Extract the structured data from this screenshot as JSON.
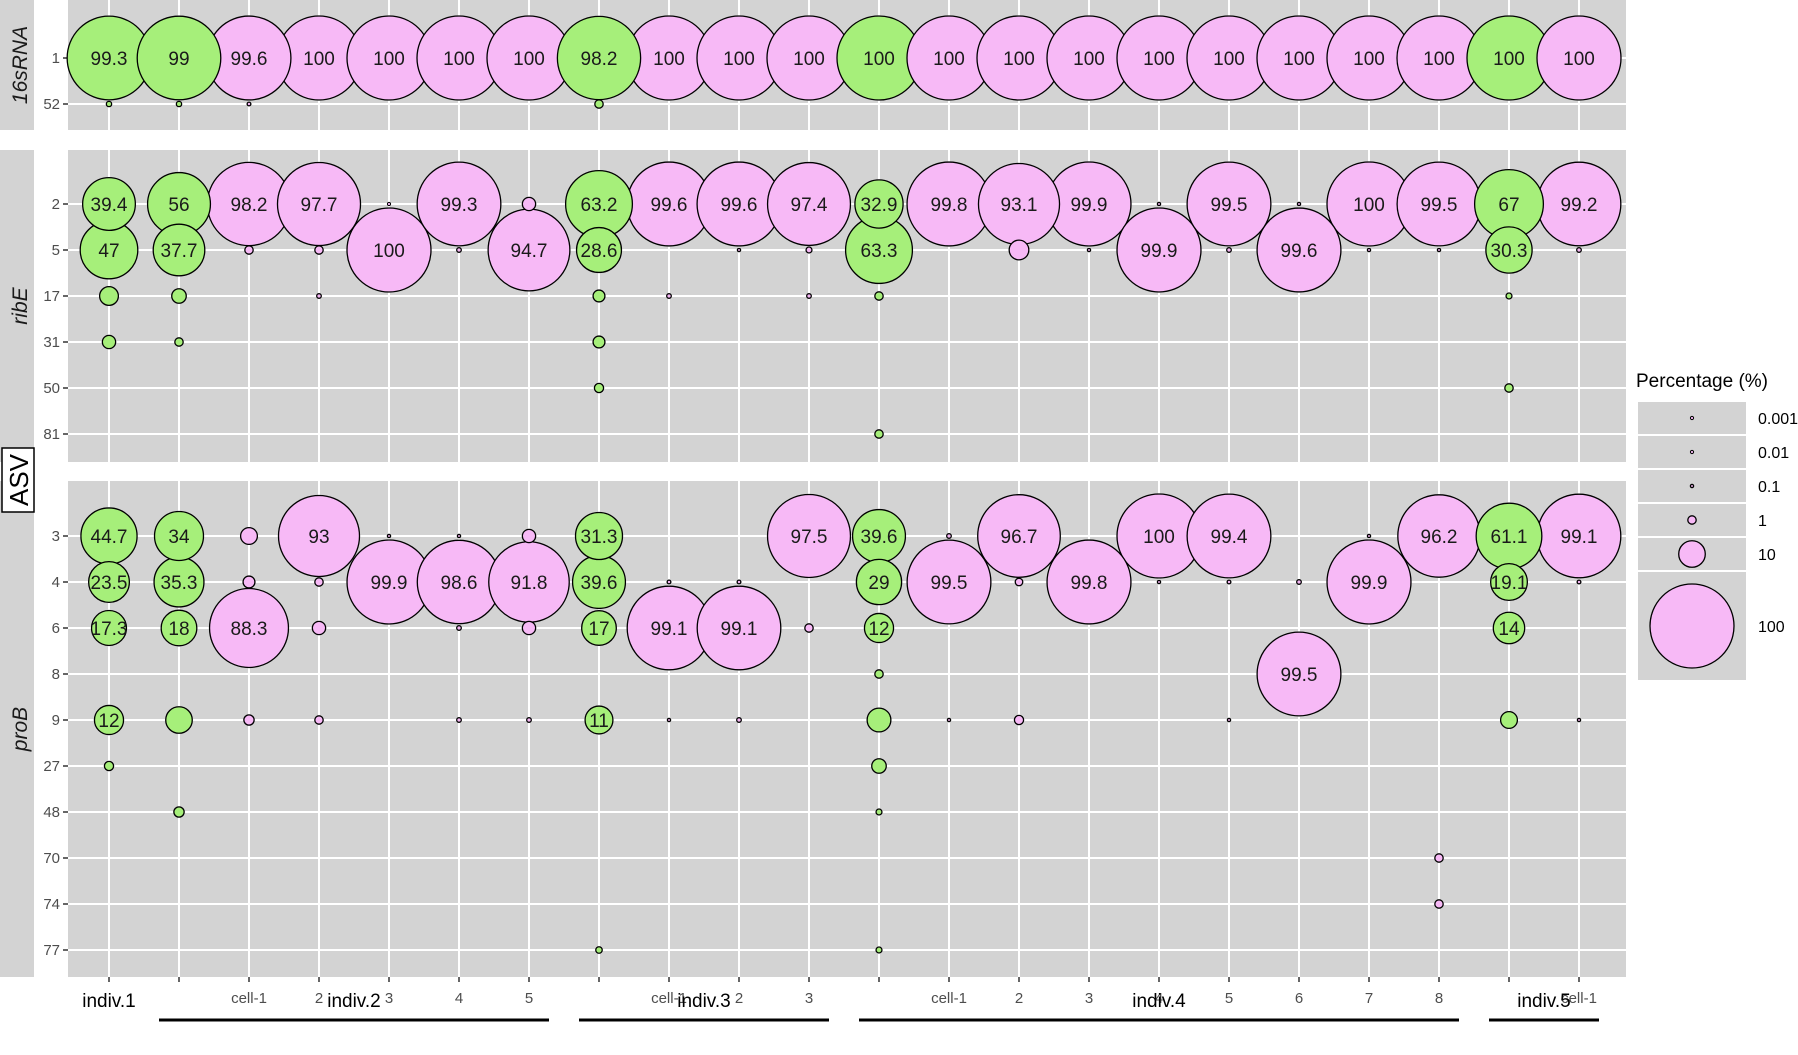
{
  "chart_data": {
    "type": "scatter",
    "y_title": "ASV",
    "legend": {
      "title": "Percentage (%)",
      "placement": "right",
      "entries": [
        {
          "label": "0.001",
          "value": 0.001
        },
        {
          "label": "0.01",
          "value": 0.01
        },
        {
          "label": "0.1",
          "value": 0.1
        },
        {
          "label": "1",
          "value": 1
        },
        {
          "label": "10",
          "value": 10
        },
        {
          "label": "100",
          "value": 100
        }
      ]
    },
    "colors": {
      "panel_bg": "#d3d3d3",
      "grid": "#ffffff",
      "green": "#a6ef7a",
      "pink": "#f7b9f6",
      "outline": "#000000"
    },
    "columns": [
      {
        "tick": "",
        "fill": "green"
      },
      {
        "tick": "",
        "fill": "green"
      },
      {
        "tick": "cell-1",
        "fill": "pink"
      },
      {
        "tick": "2",
        "fill": "pink"
      },
      {
        "tick": "3",
        "fill": "pink"
      },
      {
        "tick": "4",
        "fill": "pink"
      },
      {
        "tick": "5",
        "fill": "pink"
      },
      {
        "tick": "",
        "fill": "green"
      },
      {
        "tick": "cell-1",
        "fill": "pink"
      },
      {
        "tick": "2",
        "fill": "pink"
      },
      {
        "tick": "3",
        "fill": "pink"
      },
      {
        "tick": "",
        "fill": "green"
      },
      {
        "tick": "cell-1",
        "fill": "pink"
      },
      {
        "tick": "2",
        "fill": "pink"
      },
      {
        "tick": "3",
        "fill": "pink"
      },
      {
        "tick": "4",
        "fill": "pink"
      },
      {
        "tick": "5",
        "fill": "pink"
      },
      {
        "tick": "6",
        "fill": "pink"
      },
      {
        "tick": "7",
        "fill": "pink"
      },
      {
        "tick": "8",
        "fill": "pink"
      },
      {
        "tick": "",
        "fill": "green"
      },
      {
        "tick": "cell-1",
        "fill": "pink"
      }
    ],
    "groups": [
      {
        "label": "indiv.1",
        "from": 0,
        "to": 0,
        "underline": false
      },
      {
        "label": "indiv.2",
        "from": 1,
        "to": 6,
        "underline": true
      },
      {
        "label": "indiv.3",
        "from": 7,
        "to": 10,
        "underline": true
      },
      {
        "label": "indiv.4",
        "from": 11,
        "to": 19,
        "underline": true
      },
      {
        "label": "indiv.5",
        "from": 20,
        "to": 21,
        "underline": true
      }
    ],
    "panels": [
      {
        "name": "16sRNA",
        "rows": [
          "1",
          "52"
        ],
        "points": [
          [
            0,
            "1",
            99.3,
            "99.3"
          ],
          [
            0,
            "52",
            0.4,
            ""
          ],
          [
            1,
            "1",
            99,
            "99"
          ],
          [
            1,
            "52",
            0.4,
            ""
          ],
          [
            2,
            "1",
            99.6,
            "99.6"
          ],
          [
            2,
            "52",
            0.2,
            ""
          ],
          [
            3,
            "1",
            100,
            "100"
          ],
          [
            4,
            "1",
            100,
            "100"
          ],
          [
            5,
            "1",
            100,
            "100"
          ],
          [
            6,
            "1",
            100,
            "100"
          ],
          [
            7,
            "1",
            98.2,
            "98.2"
          ],
          [
            7,
            "52",
            1.0,
            ""
          ],
          [
            8,
            "1",
            100,
            "100"
          ],
          [
            9,
            "1",
            100,
            "100"
          ],
          [
            10,
            "1",
            100,
            "100"
          ],
          [
            11,
            "1",
            100,
            "100"
          ],
          [
            12,
            "1",
            100,
            "100"
          ],
          [
            13,
            "1",
            100,
            "100"
          ],
          [
            14,
            "1",
            100,
            "100"
          ],
          [
            15,
            "1",
            100,
            "100"
          ],
          [
            16,
            "1",
            100,
            "100"
          ],
          [
            17,
            "1",
            100,
            "100"
          ],
          [
            18,
            "1",
            100,
            "100"
          ],
          [
            19,
            "1",
            100,
            "100"
          ],
          [
            20,
            "1",
            100,
            "100"
          ],
          [
            21,
            "1",
            100,
            "100"
          ]
        ]
      },
      {
        "name": "ribE",
        "rows": [
          "2",
          "5",
          "17",
          "31",
          "50",
          "81"
        ],
        "points": [
          [
            0,
            "2",
            39.4,
            "39.4"
          ],
          [
            0,
            "5",
            47,
            "47"
          ],
          [
            0,
            "17",
            5,
            ""
          ],
          [
            0,
            "31",
            2.5,
            ""
          ],
          [
            1,
            "2",
            56,
            "56"
          ],
          [
            1,
            "5",
            37.7,
            "37.7"
          ],
          [
            1,
            "17",
            3,
            ""
          ],
          [
            1,
            "31",
            1,
            ""
          ],
          [
            2,
            "2",
            98.2,
            "98.2"
          ],
          [
            2,
            "5",
            1,
            ""
          ],
          [
            3,
            "2",
            97.7,
            "97.7"
          ],
          [
            3,
            "5",
            1,
            ""
          ],
          [
            3,
            "17",
            0.3,
            ""
          ],
          [
            4,
            "2",
            0.01,
            ""
          ],
          [
            4,
            "5",
            100,
            "100"
          ],
          [
            5,
            "2",
            99.3,
            "99.3"
          ],
          [
            5,
            "5",
            0.3,
            ""
          ],
          [
            6,
            "2",
            2.5,
            ""
          ],
          [
            6,
            "5",
            94.7,
            "94.7"
          ],
          [
            7,
            "2",
            63.2,
            "63.2"
          ],
          [
            7,
            "5",
            28.6,
            "28.6"
          ],
          [
            7,
            "17",
            2,
            ""
          ],
          [
            7,
            "31",
            2,
            ""
          ],
          [
            7,
            "50",
            1.2,
            ""
          ],
          [
            8,
            "2",
            99.6,
            "99.6"
          ],
          [
            8,
            "17",
            0.3,
            ""
          ],
          [
            9,
            "2",
            99.6,
            "99.6"
          ],
          [
            9,
            "5",
            0.05,
            ""
          ],
          [
            10,
            "2",
            97.4,
            "97.4"
          ],
          [
            10,
            "5",
            0.5,
            ""
          ],
          [
            10,
            "17",
            0.3,
            ""
          ],
          [
            11,
            "2",
            32.9,
            "32.9"
          ],
          [
            11,
            "5",
            63.3,
            "63.3"
          ],
          [
            11,
            "17",
            1,
            ""
          ],
          [
            11,
            "81",
            1,
            ""
          ],
          [
            12,
            "2",
            99.8,
            "99.8"
          ],
          [
            13,
            "2",
            93.1,
            "93.1"
          ],
          [
            13,
            "5",
            5.5,
            ""
          ],
          [
            14,
            "2",
            99.9,
            "99.9"
          ],
          [
            14,
            "5",
            0.05,
            ""
          ],
          [
            15,
            "2",
            0.05,
            ""
          ],
          [
            15,
            "5",
            99.9,
            "99.9"
          ],
          [
            16,
            "2",
            99.5,
            "99.5"
          ],
          [
            16,
            "5",
            0.3,
            ""
          ],
          [
            17,
            "2",
            0.1,
            ""
          ],
          [
            17,
            "5",
            99.6,
            "99.6"
          ],
          [
            18,
            "2",
            100,
            "100"
          ],
          [
            18,
            "5",
            0.05,
            ""
          ],
          [
            19,
            "2",
            99.5,
            "99.5"
          ],
          [
            19,
            "5",
            0.05,
            ""
          ],
          [
            20,
            "2",
            67,
            "67"
          ],
          [
            20,
            "5",
            30.3,
            "30.3"
          ],
          [
            20,
            "17",
            0.5,
            ""
          ],
          [
            20,
            "50",
            1,
            ""
          ],
          [
            21,
            "2",
            99.2,
            "99.2"
          ],
          [
            21,
            "5",
            0.3,
            ""
          ]
        ]
      },
      {
        "name": "proB",
        "rows": [
          "3",
          "4",
          "6",
          "8",
          "9",
          "27",
          "48",
          "70",
          "74",
          "77"
        ],
        "points": [
          [
            0,
            "3",
            44.7,
            "44.7"
          ],
          [
            0,
            "4",
            23.5,
            "23.5"
          ],
          [
            0,
            "6",
            17.3,
            "17.3"
          ],
          [
            0,
            "9",
            12,
            "12"
          ],
          [
            0,
            "27",
            1.2,
            ""
          ],
          [
            1,
            "3",
            34,
            "34"
          ],
          [
            1,
            "4",
            35.3,
            "35.3"
          ],
          [
            1,
            "6",
            18,
            "18"
          ],
          [
            1,
            "9",
            10,
            ""
          ],
          [
            1,
            "48",
            1.5,
            ""
          ],
          [
            2,
            "3",
            4,
            ""
          ],
          [
            2,
            "4",
            2,
            ""
          ],
          [
            2,
            "6",
            88.3,
            "88.3"
          ],
          [
            2,
            "9",
            1.5,
            ""
          ],
          [
            3,
            "3",
            93,
            "93"
          ],
          [
            3,
            "4",
            1,
            ""
          ],
          [
            3,
            "6",
            2.5,
            ""
          ],
          [
            3,
            "9",
            1,
            ""
          ],
          [
            4,
            "3",
            0.05,
            ""
          ],
          [
            4,
            "4",
            99.9,
            "99.9"
          ],
          [
            5,
            "3",
            0.1,
            ""
          ],
          [
            5,
            "4",
            98.6,
            "98.6"
          ],
          [
            5,
            "6",
            0.3,
            ""
          ],
          [
            5,
            "9",
            0.3,
            ""
          ],
          [
            6,
            "3",
            2.5,
            ""
          ],
          [
            6,
            "4",
            91.8,
            "91.8"
          ],
          [
            6,
            "6",
            2.5,
            ""
          ],
          [
            6,
            "9",
            0.3,
            ""
          ],
          [
            7,
            "3",
            31.3,
            "31.3"
          ],
          [
            7,
            "4",
            39.6,
            "39.6"
          ],
          [
            7,
            "6",
            17,
            "17"
          ],
          [
            7,
            "9",
            11,
            "11"
          ],
          [
            7,
            "77",
            0.6,
            ""
          ],
          [
            8,
            "4",
            0.2,
            ""
          ],
          [
            8,
            "6",
            99.1,
            "99.1"
          ],
          [
            8,
            "9",
            0.1,
            ""
          ],
          [
            9,
            "4",
            0.2,
            ""
          ],
          [
            9,
            "6",
            99.1,
            "99.1"
          ],
          [
            9,
            "9",
            0.3,
            ""
          ],
          [
            10,
            "3",
            97.5,
            "97.5"
          ],
          [
            10,
            "6",
            1,
            ""
          ],
          [
            11,
            "3",
            39.6,
            "39.6"
          ],
          [
            11,
            "4",
            29,
            "29"
          ],
          [
            11,
            "6",
            12,
            "12"
          ],
          [
            11,
            "8",
            1,
            ""
          ],
          [
            11,
            "9",
            8,
            ""
          ],
          [
            11,
            "27",
            3,
            ""
          ],
          [
            11,
            "48",
            0.5,
            ""
          ],
          [
            11,
            "77",
            0.5,
            ""
          ],
          [
            12,
            "3",
            0.3,
            ""
          ],
          [
            12,
            "4",
            99.5,
            "99.5"
          ],
          [
            12,
            "9",
            0.1,
            ""
          ],
          [
            13,
            "3",
            96.7,
            "96.7"
          ],
          [
            13,
            "4",
            0.8,
            ""
          ],
          [
            13,
            "9",
            1.2,
            ""
          ],
          [
            14,
            "4",
            99.8,
            "99.8"
          ],
          [
            15,
            "3",
            100,
            "100"
          ],
          [
            15,
            "4",
            0.05,
            ""
          ],
          [
            16,
            "3",
            99.4,
            "99.4"
          ],
          [
            16,
            "4",
            0.2,
            ""
          ],
          [
            16,
            "9",
            0.05,
            ""
          ],
          [
            17,
            "4",
            0.3,
            ""
          ],
          [
            17,
            "8",
            99.5,
            "99.5"
          ],
          [
            18,
            "3",
            0.05,
            ""
          ],
          [
            18,
            "4",
            99.9,
            "99.9"
          ],
          [
            19,
            "3",
            96.2,
            "96.2"
          ],
          [
            19,
            "70",
            1,
            ""
          ],
          [
            19,
            "74",
            1,
            ""
          ],
          [
            20,
            "3",
            61.1,
            "61.1"
          ],
          [
            20,
            "4",
            19.1,
            "19.1"
          ],
          [
            20,
            "6",
            14,
            "14"
          ],
          [
            20,
            "9",
            4,
            ""
          ],
          [
            21,
            "3",
            99.1,
            "99.1"
          ],
          [
            21,
            "4",
            0.2,
            ""
          ],
          [
            21,
            "9",
            0.1,
            ""
          ]
        ]
      }
    ]
  }
}
